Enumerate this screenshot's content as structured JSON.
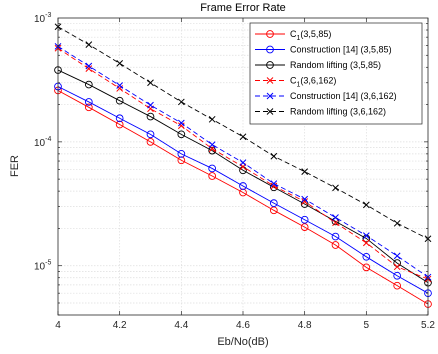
{
  "chart_data": {
    "type": "line",
    "title": "Frame Error Rate",
    "xlabel": "Eb/No(dB)",
    "ylabel": "FER",
    "xlim": [
      4,
      5.2
    ],
    "ylim": [
      4e-06,
      0.001
    ],
    "yscale": "log",
    "grid": true,
    "legend_position": "top-right",
    "x_ticks": [
      4,
      4.2,
      4.4,
      4.6,
      4.8,
      5,
      5.2
    ],
    "x_tick_labels": [
      "4",
      "4.2",
      "4.4",
      "4.6",
      "4.8",
      "5",
      "5.2"
    ],
    "y_ticks": [
      1e-05,
      0.0001,
      0.001
    ],
    "y_tick_labels": [
      {
        "base": "10",
        "exp": "-5"
      },
      {
        "base": "10",
        "exp": "-4"
      },
      {
        "base": "10",
        "exp": "-3"
      }
    ],
    "x": [
      4,
      4.1,
      4.2,
      4.3,
      4.4,
      4.5,
      4.6,
      4.7,
      4.8,
      4.9,
      5,
      5.1,
      5.2
    ],
    "series": [
      {
        "name": "C",
        "sub": "1",
        "suffix": "(3,5,85)",
        "color": "#ff0000",
        "marker": "circle",
        "dash": "solid",
        "values": [
          0.00026,
          0.00019,
          0.000138,
          0.0001,
          7.1e-05,
          5.3e-05,
          3.9e-05,
          2.8e-05,
          2.05e-05,
          1.47e-05,
          9.7e-06,
          6.9e-06,
          4.9e-06
        ]
      },
      {
        "name": "Construction [14]",
        "suffix": "(3,5,85)",
        "color": "#0000ff",
        "marker": "circle",
        "dash": "solid",
        "values": [
          0.00028,
          0.00021,
          0.000155,
          0.000115,
          8e-05,
          6.1e-05,
          4.4e-05,
          3.2e-05,
          2.35e-05,
          1.72e-05,
          1.18e-05,
          8.3e-06,
          6e-06
        ]
      },
      {
        "name": "Random lifting",
        "suffix": "(3,5,85)",
        "color": "#000000",
        "marker": "circle",
        "dash": "solid",
        "values": [
          0.00038,
          0.00029,
          0.000215,
          0.00016,
          0.000115,
          8.5e-05,
          5.9e-05,
          4.3e-05,
          3.15e-05,
          2.28e-05,
          1.66e-05,
          1.05e-05,
          7.3e-06
        ]
      },
      {
        "name": "C",
        "sub": "1",
        "suffix": "(3,6,162)",
        "color": "#ff0000",
        "marker": "x",
        "dash": "dashed",
        "values": [
          0.00057,
          0.00039,
          0.00027,
          0.000185,
          0.000135,
          8.8e-05,
          6.3e-05,
          4.4e-05,
          3.3e-05,
          2.22e-05,
          1.53e-05,
          9.8e-06,
          7.8e-06
        ]
      },
      {
        "name": "Construction [14]",
        "suffix": "(3,6,162)",
        "color": "#0000ff",
        "marker": "x",
        "dash": "dashed",
        "values": [
          0.00059,
          0.00041,
          0.000285,
          0.000198,
          0.000142,
          9.5e-05,
          6.8e-05,
          4.6e-05,
          3.45e-05,
          2.45e-05,
          1.75e-05,
          1.2e-05,
          8.1e-06
        ]
      },
      {
        "name": "Random lifting",
        "suffix": "(3,6,162)",
        "color": "#000000",
        "marker": "x",
        "dash": "dashed",
        "values": [
          0.00085,
          0.00061,
          0.00043,
          0.0003,
          0.00021,
          0.000152,
          0.00011,
          7.65e-05,
          5.75e-05,
          4.25e-05,
          3.1e-05,
          2.2e-05,
          1.65e-05
        ]
      }
    ]
  }
}
